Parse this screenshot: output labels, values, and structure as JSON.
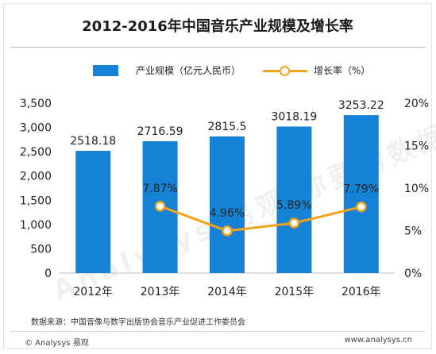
{
  "title": "2012-2016年中国音乐产业规模及增长率",
  "legend": {
    "bar_label": "产业规模（亿元人民币）",
    "line_label": "增长率（%）"
  },
  "footer": {
    "source": "数据来源：中国音像与数字出版协会音乐产业促进工作委员会",
    "brand": "© Analysys 易观",
    "site": "www.analysys.cn"
  },
  "watermark": "Analysys 易观 你要的数据分析",
  "colors": {
    "bar": "#1582d6",
    "line": "#f7a21b",
    "marker_fill": "#ffffff"
  },
  "chart_data": {
    "type": "bar",
    "title": "2012-2016年中国音乐产业规模及增长率",
    "categories": [
      "2012年",
      "2013年",
      "2014年",
      "2015年",
      "2016年"
    ],
    "series": [
      {
        "name": "产业规模（亿元人民币）",
        "type": "bar",
        "axis": "left",
        "values": [
          2518.18,
          2716.59,
          2815.5,
          3018.19,
          3253.22
        ],
        "labels": [
          "2518.18",
          "2716.59",
          "2815.5",
          "3018.19",
          "3253.22"
        ]
      },
      {
        "name": "增长率（%）",
        "type": "line",
        "axis": "right",
        "values": [
          null,
          7.87,
          4.96,
          5.89,
          7.79
        ],
        "labels": [
          "",
          "7.87%",
          "4.96%",
          "5.89%",
          "7.79%"
        ]
      }
    ],
    "y_left": {
      "ylim": [
        0,
        3500
      ],
      "ticks": [
        "0",
        "500",
        "1,000",
        "1,500",
        "2,000",
        "2,500",
        "3,000",
        "3,500"
      ]
    },
    "y_right": {
      "ylim": [
        0,
        20
      ],
      "ticks": [
        "0%",
        "5%",
        "10%",
        "15%",
        "20%"
      ]
    },
    "legend_position": "top",
    "grid": false
  }
}
